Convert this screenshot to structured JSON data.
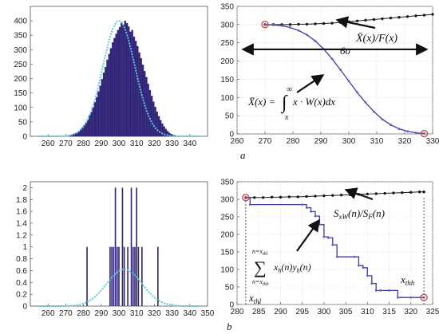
{
  "figure": {
    "caption_a": "a",
    "caption_b": "b"
  },
  "colors": {
    "bar": "#2f2374",
    "fit": "#5fc8d8",
    "line": "#3a3aa0",
    "dots": "#1b1b1b",
    "marker": "#e04040"
  },
  "chart_data": [
    {
      "id": "a_left",
      "type": "bar",
      "xlim": [
        250,
        350
      ],
      "ylim": [
        0,
        450
      ],
      "xticks": [
        "260",
        "270",
        "280",
        "290",
        "300",
        "310",
        "320",
        "330",
        "340"
      ],
      "yticks": [
        "0",
        "50",
        "100",
        "150",
        "200",
        "250",
        "300",
        "350",
        "400"
      ],
      "hist": {
        "x_start": 272,
        "bin_width": 1,
        "values": [
          3,
          5,
          8,
          10,
          13,
          18,
          23,
          30,
          38,
          48,
          58,
          72,
          85,
          100,
          118,
          135,
          155,
          175,
          198,
          220,
          240,
          265,
          285,
          305,
          325,
          340,
          355,
          368,
          378,
          395,
          385,
          400,
          392,
          380,
          362,
          368,
          345,
          330,
          312,
          290,
          270,
          248,
          226,
          205,
          182,
          160,
          140,
          120,
          102,
          85,
          70,
          56,
          44,
          34,
          25,
          18,
          12,
          8,
          5,
          3
        ]
      },
      "fit": {
        "mean": 300,
        "sigma": 9,
        "peak": 400
      }
    },
    {
      "id": "a_right",
      "type": "line",
      "xlim": [
        260,
        330
      ],
      "ylim": [
        0,
        350
      ],
      "xticks": [
        "260",
        "270",
        "280",
        "290",
        "300",
        "310",
        "320",
        "330"
      ],
      "yticks": [
        "0",
        "50",
        "100",
        "150",
        "200",
        "250",
        "300",
        "350"
      ],
      "series": [
        {
          "kind": "dotted",
          "x": [
            270,
            273,
            276,
            279,
            282,
            285,
            288,
            291,
            294,
            297,
            300,
            303,
            306,
            309,
            312,
            315,
            318,
            321,
            324,
            327,
            330
          ],
          "y": [
            300,
            300,
            300,
            300,
            301,
            301,
            302,
            303,
            304,
            306,
            308,
            310,
            312,
            314,
            316,
            318,
            320,
            322,
            324,
            326,
            328
          ]
        },
        {
          "kind": "solid",
          "x": [
            270,
            273,
            276,
            279,
            282,
            285,
            288,
            291,
            294,
            297,
            300,
            303,
            306,
            309,
            312,
            315,
            318,
            321,
            324,
            327
          ],
          "y": [
            300,
            299,
            297,
            292,
            284,
            272,
            255,
            233,
            206,
            176,
            145,
            114,
            86,
            61,
            40,
            25,
            14,
            7,
            3,
            1
          ]
        }
      ],
      "markers": [
        {
          "x": 270,
          "y": 300
        },
        {
          "x": 327,
          "y": 1
        }
      ],
      "arrow_span": {
        "x1": 262,
        "x2": 328,
        "y": 232
      },
      "annotations": {
        "ratio_label": "X̄(x)/F(x)",
        "span_label": "6σ",
        "integral_lhs": "X̄(x) =",
        "integral_upper": "∞",
        "integral_lower": "x",
        "integral_body": "x · W(x)dx"
      }
    },
    {
      "id": "b_left",
      "type": "bar",
      "xlim": [
        250,
        350
      ],
      "ylim": [
        0,
        2.1
      ],
      "xticks": [
        "260",
        "270",
        "280",
        "290",
        "300",
        "310",
        "320",
        "330",
        "340",
        "350"
      ],
      "yticks": [
        "0",
        "0.2",
        "0.4",
        "0.6",
        "0.8",
        "1",
        "1.2",
        "1.4",
        "1.6",
        "1.8",
        "2"
      ],
      "bars": {
        "x": [
          282,
          295,
          296,
          297,
          298,
          299,
          300,
          302,
          303,
          305,
          307,
          308,
          309,
          310,
          311,
          313,
          322
        ],
        "values": [
          1,
          1,
          1,
          1,
          2,
          1,
          1,
          2,
          1,
          1,
          2,
          1,
          1,
          2,
          1,
          1,
          1
        ]
      },
      "fit": {
        "mean": 303,
        "sigma": 10,
        "peak": 0.62
      }
    },
    {
      "id": "b_right",
      "type": "line",
      "xlim": [
        280,
        325
      ],
      "ylim": [
        0,
        350
      ],
      "xticks": [
        "280",
        "285",
        "290",
        "295",
        "300",
        "305",
        "310",
        "315",
        "320",
        "325"
      ],
      "yticks": [
        "0",
        "50",
        "100",
        "150",
        "200",
        "250",
        "300",
        "350"
      ],
      "series": [
        {
          "kind": "dotted",
          "x": [
            282,
            284,
            286,
            288,
            290,
            292,
            294,
            296,
            298,
            300,
            302,
            304,
            306,
            308,
            310,
            312,
            314,
            316,
            318,
            320,
            322,
            323
          ],
          "y": [
            305,
            305,
            305,
            306,
            306,
            307,
            307,
            308,
            309,
            310,
            311,
            312,
            313,
            314,
            315,
            316,
            317,
            318,
            319,
            320,
            321,
            321
          ]
        },
        {
          "kind": "step",
          "x": [
            282,
            283,
            295,
            296,
            297,
            298,
            299,
            300,
            301,
            302,
            303,
            307,
            308,
            309,
            310,
            311,
            312,
            313,
            315,
            317,
            320,
            323
          ],
          "y": [
            305,
            285,
            285,
            276,
            265,
            252,
            228,
            193,
            190,
            170,
            136,
            136,
            111,
            105,
            82,
            60,
            40,
            40,
            40,
            20,
            20,
            20
          ]
        }
      ],
      "markers": [
        {
          "x": 282,
          "y": 305
        },
        {
          "x": 323,
          "y": 20
        }
      ],
      "drop_lines": [
        282,
        323
      ],
      "annotations": {
        "ratio_label": "S_xW(n)/S_F(n)",
        "sum_upper": "n=x_thl",
        "sum_lower": "n=x_thh",
        "sum_body": "x_h(n) y_h(n)",
        "xthl": "x_thl",
        "xthh": "x_thh"
      }
    }
  ]
}
